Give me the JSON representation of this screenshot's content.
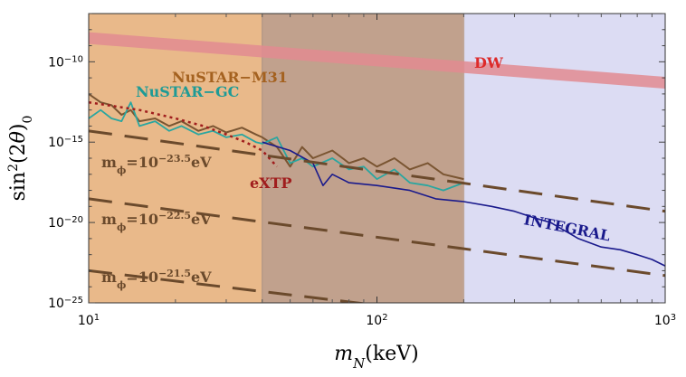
{
  "chart_data": {
    "type": "line",
    "title": "",
    "xlabel": "m_N(keV)",
    "ylabel": "sin²(2θ)₀",
    "x_scale": "log",
    "y_scale": "log",
    "xlim": [
      10,
      1000
    ],
    "ylim": [
      1e-25,
      1e-07
    ],
    "x_ticks": [
      {
        "value": 10,
        "mant": "10",
        "exp": "1"
      },
      {
        "value": 100,
        "mant": "10",
        "exp": "2"
      },
      {
        "value": 1000,
        "mant": "10",
        "exp": "3"
      }
    ],
    "y_ticks": [
      {
        "value": 1e-10,
        "mant": "10",
        "exp": "−10"
      },
      {
        "value": 1e-15,
        "mant": "10",
        "exp": "−15"
      },
      {
        "value": 1e-20,
        "mant": "10",
        "exp": "−20"
      },
      {
        "value": 1e-25,
        "mant": "10",
        "exp": "−25"
      }
    ],
    "shaded_regions": [
      {
        "name": "NuSTAR-M31 (flat)",
        "x": [
          10,
          40
        ],
        "y_top": 1e-07,
        "color": "#e9b98a"
      },
      {
        "name": "NuSTAR-M31 band",
        "x": [
          40,
          200
        ],
        "y_top": 1e-07,
        "color": "#c1a18d"
      },
      {
        "name": "INTEGRAL band",
        "x": [
          200,
          1000
        ],
        "y_top": 1e-07,
        "color": "#dcdcf3"
      }
    ],
    "series": [
      {
        "name": "NuSTAR-M31",
        "color": "#7a5532",
        "points": [
          [
            10,
            1e-12
          ],
          [
            11,
            3e-13
          ],
          [
            12,
            2e-13
          ],
          [
            13,
            5e-14
          ],
          [
            14,
            1e-13
          ],
          [
            15,
            2e-14
          ],
          [
            17,
            3e-14
          ],
          [
            19,
            1e-14
          ],
          [
            21,
            2e-14
          ],
          [
            24,
            5e-15
          ],
          [
            27,
            1e-14
          ],
          [
            30,
            4e-15
          ],
          [
            34,
            8e-15
          ],
          [
            38,
            3e-15
          ],
          [
            40,
            2e-15
          ],
          [
            45,
            5e-16
          ],
          [
            50,
            3e-17
          ],
          [
            55,
            5e-16
          ],
          [
            60,
            1e-16
          ],
          [
            70,
            3e-16
          ],
          [
            80,
            5e-17
          ],
          [
            90,
            1e-16
          ],
          [
            100,
            3e-17
          ],
          [
            115,
            1e-16
          ],
          [
            130,
            2e-17
          ],
          [
            150,
            5e-17
          ],
          [
            170,
            1e-17
          ],
          [
            200,
            5e-18
          ]
        ]
      },
      {
        "name": "NuSTAR-GC",
        "color": "#2aa6a0",
        "points": [
          [
            10,
            3e-14
          ],
          [
            11,
            1e-13
          ],
          [
            12,
            3e-14
          ],
          [
            13,
            2e-14
          ],
          [
            14,
            3e-13
          ],
          [
            15,
            1e-14
          ],
          [
            17,
            2e-14
          ],
          [
            19,
            5e-15
          ],
          [
            21,
            1e-14
          ],
          [
            24,
            3e-15
          ],
          [
            27,
            5e-15
          ],
          [
            30,
            2e-15
          ],
          [
            34,
            3e-15
          ],
          [
            38,
            1e-15
          ],
          [
            40,
            8e-16
          ],
          [
            45,
            2e-15
          ],
          [
            50,
            5e-17
          ],
          [
            55,
            1e-16
          ],
          [
            60,
            3e-17
          ],
          [
            70,
            1e-16
          ],
          [
            80,
            2e-17
          ],
          [
            90,
            3e-17
          ],
          [
            100,
            5e-18
          ],
          [
            115,
            2e-17
          ],
          [
            130,
            3e-18
          ],
          [
            150,
            2e-18
          ],
          [
            170,
            1e-18
          ],
          [
            200,
            3e-18
          ]
        ]
      },
      {
        "name": "INTEGRAL",
        "color": "#1a1a8c",
        "points": [
          [
            40,
            1e-15
          ],
          [
            50,
            3e-16
          ],
          [
            60,
            5e-17
          ],
          [
            65,
            2e-18
          ],
          [
            70,
            1e-17
          ],
          [
            80,
            3e-18
          ],
          [
            100,
            2e-18
          ],
          [
            130,
            1e-18
          ],
          [
            160,
            3e-19
          ],
          [
            200,
            2e-19
          ],
          [
            250,
            1e-19
          ],
          [
            300,
            5e-20
          ],
          [
            350,
            2e-20
          ],
          [
            400,
            1e-20
          ],
          [
            500,
            1e-21
          ],
          [
            600,
            3e-22
          ],
          [
            700,
            2e-22
          ],
          [
            800,
            1e-22
          ],
          [
            900,
            5e-23
          ],
          [
            1000,
            2e-23
          ]
        ]
      },
      {
        "name": "DW",
        "color": "#e28b90",
        "points": [
          [
            10,
            3e-09
          ],
          [
            1000,
            5e-12
          ]
        ]
      },
      {
        "name": "eXTP",
        "color": "#a01d1d",
        "points": [
          [
            10,
            3e-13
          ],
          [
            15,
            1e-13
          ],
          [
            20,
            3e-14
          ],
          [
            25,
            1e-14
          ],
          [
            30,
            3e-15
          ],
          [
            35,
            1e-15
          ],
          [
            40,
            3e-16
          ],
          [
            45,
            3e-17
          ]
        ]
      }
    ],
    "guide_lines": [
      {
        "exp": "−23.5",
        "points": [
          [
            10,
            5e-15
          ],
          [
            1000,
            5e-20
          ]
        ]
      },
      {
        "exp": "−22.5",
        "points": [
          [
            10,
            3e-19
          ],
          [
            1000,
            5e-24
          ]
        ]
      },
      {
        "exp": "−21.5",
        "points": [
          [
            10,
            1e-23
          ],
          [
            1000,
            5e-28
          ]
        ]
      }
    ],
    "labels": {
      "nustar_m31": "NuSTAR−M31",
      "nustar_gc": "NuSTAR−GC",
      "dw": "DW",
      "extp": "eXTP",
      "integral": "INTEGRAL",
      "mass_prefix": "m",
      "mass_sub": "ϕ",
      "mass_eq": "=10",
      "mass_unit": "eV"
    }
  }
}
